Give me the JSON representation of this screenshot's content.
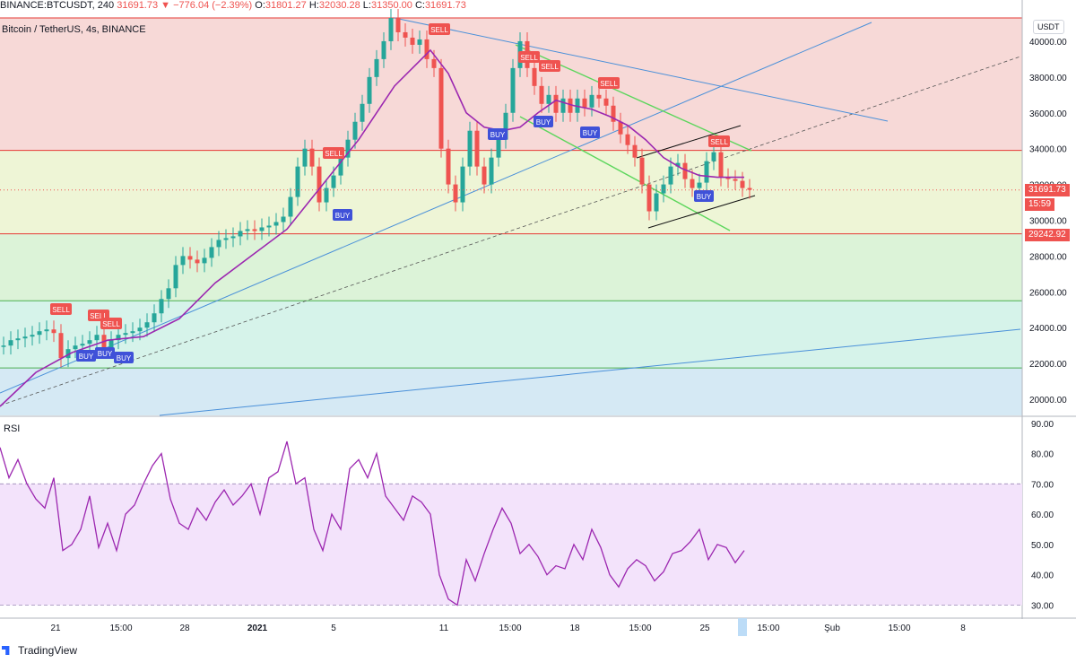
{
  "header": {
    "symbol": "BINANCE:BTCUSDT, 240",
    "last": "31691.73",
    "change": "−776.04 (−2.39%)",
    "o_label": "O:",
    "o": "31801.27",
    "h_label": "H:",
    "h": "32030.28",
    "l_label": "L:",
    "l": "31350.00",
    "c_label": "C:",
    "c": "31691.73",
    "subtitle": "Bitcoin / TetherUS, 4s, BINANCE"
  },
  "currency_badge": "USDT",
  "rsi_label": "RSI",
  "last_price_tag": "31691.73",
  "countdown_tag": "15:59",
  "level_tag": "29242.92",
  "brand": "TradingView",
  "chart_data": [
    {
      "type": "line",
      "title": "Bitcoin / TetherUS, 4s, BINANCE",
      "y_ticks": [
        "40000.00",
        "38000.00",
        "36000.00",
        "34000.00",
        "32000.00",
        "30000.00",
        "28000.00",
        "26000.00",
        "24000.00",
        "22000.00",
        "20000.00"
      ],
      "ylim": [
        19100,
        41300
      ],
      "x_ticks": [
        "21",
        "15:00",
        "28",
        "2021",
        "5",
        "11",
        "15:00",
        "18",
        "15:00",
        "25",
        "15:00",
        "Şub",
        "15:00",
        "8"
      ],
      "series": [
        {
          "kind": "price",
          "x": [
            0,
            8,
            16,
            24,
            32,
            40,
            48,
            56,
            64,
            72,
            80,
            88,
            96,
            104,
            112,
            120,
            128,
            136,
            144,
            152,
            160,
            168,
            176,
            184,
            192,
            200,
            208,
            216,
            224,
            232,
            240,
            248,
            256,
            264,
            272,
            280,
            288,
            296,
            304,
            312,
            320,
            328,
            336,
            344,
            352,
            360,
            368,
            376,
            384,
            392,
            400,
            408,
            416,
            424,
            432,
            440,
            448,
            456,
            464,
            472,
            480,
            488,
            496,
            504,
            512,
            520,
            528,
            536,
            544,
            552,
            560,
            568,
            576,
            584,
            592,
            600,
            608,
            616,
            624,
            632,
            640,
            648,
            656,
            664,
            672,
            680,
            688,
            696,
            704,
            712,
            720,
            728,
            736,
            744,
            752,
            760,
            768,
            776,
            784,
            792,
            800,
            808,
            816,
            824,
            832
          ],
          "values": [
            23000,
            23300,
            23400,
            23500,
            23600,
            23800,
            23900,
            23700,
            22300,
            22800,
            23000,
            23100,
            23300,
            23600,
            22900,
            23300,
            23600,
            23700,
            23800,
            24000,
            24300,
            24800,
            25600,
            26200,
            27500,
            28000,
            27800,
            27600,
            27900,
            28500,
            28900,
            29000,
            29100,
            29400,
            29500,
            29400,
            29600,
            29700,
            29900,
            30200,
            31300,
            33000,
            34000,
            33000,
            31000,
            31800,
            32500,
            33500,
            34500,
            35500,
            36500,
            38000,
            39000,
            40000,
            41300,
            40500,
            40200,
            39800,
            40100,
            39000,
            38500,
            34000,
            32000,
            31000,
            33000,
            35000,
            33000,
            32000,
            33500,
            34500,
            36000,
            38500,
            40000,
            38500,
            37500,
            36500,
            37000,
            36000,
            36800,
            36000,
            36800,
            36300,
            37000,
            36800,
            36400,
            35500,
            34800,
            34200,
            33500,
            32000,
            30500,
            31500,
            32000,
            33000,
            33200,
            32300,
            31800,
            32100,
            33300,
            33800,
            32400,
            32300,
            32200,
            31800,
            31700
          ]
        },
        {
          "kind": "moving-average",
          "x": [
            0,
            40,
            80,
            120,
            160,
            200,
            240,
            280,
            320,
            360,
            400,
            440,
            480,
            500,
            520,
            540,
            560,
            580,
            600,
            620,
            640,
            660,
            680,
            700,
            720,
            740,
            760,
            780,
            800,
            830
          ],
          "values": [
            19600,
            21500,
            22600,
            23300,
            23500,
            24500,
            26500,
            28000,
            29500,
            32000,
            34500,
            37500,
            39500,
            38200,
            36000,
            35200,
            35000,
            35200,
            36000,
            36700,
            36400,
            36200,
            35800,
            35300,
            34500,
            33500,
            32900,
            32500,
            32400,
            32400
          ]
        },
        {
          "kind": "rsi",
          "x": [
            0,
            10,
            20,
            30,
            40,
            50,
            60,
            70,
            80,
            90,
            100,
            110,
            120,
            130,
            140,
            150,
            160,
            170,
            180,
            190,
            200,
            210,
            220,
            230,
            240,
            250,
            260,
            270,
            280,
            290,
            300,
            310,
            320,
            330,
            340,
            350,
            360,
            370,
            380,
            390,
            400,
            410,
            420,
            430,
            440,
            450,
            460,
            470,
            480,
            490,
            500,
            510,
            520,
            530,
            540,
            550,
            560,
            570,
            580,
            590,
            600,
            610,
            620,
            630,
            640,
            650,
            660,
            670,
            680,
            690,
            700,
            710,
            720,
            730,
            740,
            750,
            760,
            770,
            780,
            790,
            800,
            810,
            820,
            830
          ],
          "values": [
            82,
            72,
            78,
            70,
            65,
            62,
            72,
            48,
            50,
            55,
            66,
            49,
            57,
            48,
            60,
            63,
            70,
            76,
            80,
            65,
            57,
            55,
            62,
            58,
            64,
            68,
            63,
            66,
            70,
            60,
            72,
            74,
            84,
            70,
            72,
            55,
            48,
            60,
            55,
            75,
            78,
            72,
            80,
            66,
            62,
            58,
            66,
            64,
            60,
            40,
            32,
            30,
            45,
            38,
            47,
            55,
            62,
            57,
            47,
            50,
            46,
            40,
            43,
            42,
            50,
            45,
            55,
            49,
            40,
            36,
            42,
            45,
            43,
            38,
            41,
            47,
            48,
            51,
            55,
            45,
            50,
            49,
            44,
            48
          ]
        }
      ]
    },
    {
      "type": "line",
      "title": "RSI",
      "y_ticks": [
        "90.00",
        "80.00",
        "70.00",
        "60.00",
        "50.00",
        "40.00",
        "30.00"
      ],
      "ylim": [
        26,
        92
      ],
      "band": [
        30,
        70
      ]
    }
  ],
  "signals": {
    "sell": [
      "SELL",
      "SELL",
      "SELL",
      "SELL",
      "SELL",
      "SELL",
      "SELL",
      "SELL",
      "SELL"
    ],
    "buy": [
      "BUY",
      "BUY",
      "BUY",
      "BUY",
      "BUY",
      "BUY",
      "BUY",
      "BUY"
    ]
  },
  "colors": {
    "sell": "#ef5350",
    "buy": "#3f51d8",
    "ma": "#9c27b0",
    "rsi": "#9c27b0",
    "trend_blue": "#4a90d9",
    "channel_green": "#5cd65c",
    "level_red": "#e53935",
    "level_green": "#4caf50"
  }
}
